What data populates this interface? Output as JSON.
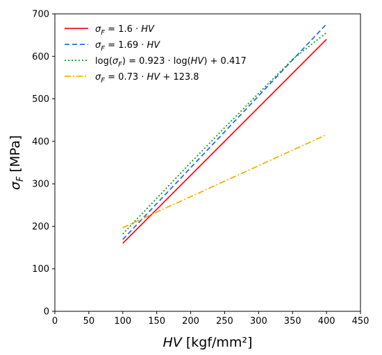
{
  "chart_data": {
    "type": "line",
    "xlabel": {
      "var": "HV",
      "unit": " [kgf/mm²]"
    },
    "ylabel": {
      "var": "σ",
      "sub": "F",
      "unit": " [MPa]"
    },
    "xlim": [
      0,
      450
    ],
    "ylim": [
      0,
      700
    ],
    "xticks": [
      0,
      50,
      100,
      150,
      200,
      250,
      300,
      350,
      400,
      450
    ],
    "yticks": [
      0,
      100,
      200,
      300,
      400,
      500,
      600,
      700
    ],
    "grid": false,
    "legend_position": "top-left",
    "series": [
      {
        "name": "σF = 1.6 · HV",
        "legend_label": {
          "lhs": "σ",
          "lhs_sub": "F",
          "rhs": " = 1.6 · ",
          "var": "HV",
          "tail": ""
        },
        "color": "#e8141b",
        "style": "solid",
        "x": [
          100,
          400
        ],
        "y": [
          160,
          640
        ]
      },
      {
        "name": "σF = 1.69 · HV",
        "legend_label": {
          "lhs": "σ",
          "lhs_sub": "F",
          "rhs": " = 1.69 · ",
          "var": "HV",
          "tail": ""
        },
        "color": "#1f6fe6",
        "style": "dashed",
        "x": [
          100,
          400
        ],
        "y": [
          169,
          676
        ]
      },
      {
        "name": "log(σF) = 0.923 · log(HV) + 0.417",
        "legend_label": {
          "lhs": "log(σ",
          "lhs_sub": "F",
          "rhs": ") = 0.923 · log(",
          "var": "HV",
          "tail": ") + 0.417"
        },
        "color": "#119a11",
        "style": "dotted",
        "x": [
          100,
          150,
          200,
          250,
          300,
          350,
          400
        ],
        "y": [
          182,
          266,
          350,
          432,
          513,
          593,
          656
        ]
      },
      {
        "name": "σF = 0.73 · HV + 123.8",
        "legend_label": {
          "lhs": "σ",
          "lhs_sub": "F",
          "rhs": " = 0.73 · ",
          "var": "HV",
          "tail": " + 123.8"
        },
        "color": "#f5b000",
        "style": "dashdot",
        "x": [
          100,
          400
        ],
        "y": [
          196.8,
          415.8
        ]
      }
    ]
  }
}
